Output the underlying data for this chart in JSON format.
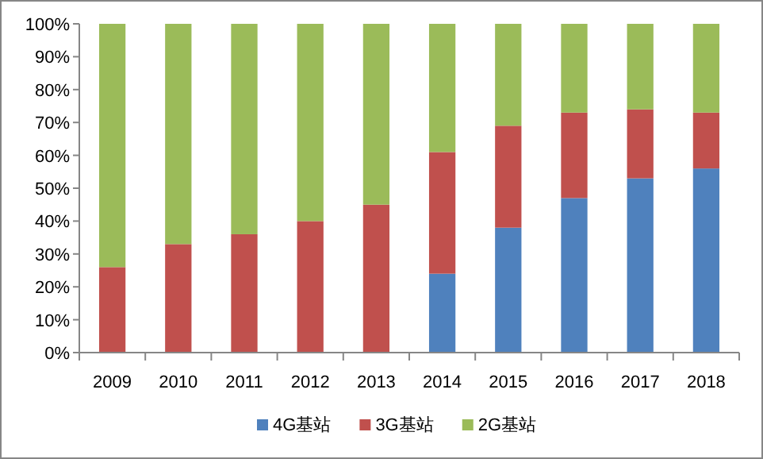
{
  "chart_data": {
    "type": "bar",
    "stacked": true,
    "categories": [
      "2009",
      "2010",
      "2011",
      "2012",
      "2013",
      "2014",
      "2015",
      "2016",
      "2017",
      "2018"
    ],
    "series": [
      {
        "name": "4G基站",
        "color": "#4f81bd",
        "values": [
          0,
          0,
          0,
          0,
          0,
          24,
          38,
          47,
          53,
          56
        ]
      },
      {
        "name": "3G基站",
        "color": "#c0504d",
        "values": [
          26,
          33,
          36,
          40,
          45,
          37,
          31,
          26,
          21,
          17
        ]
      },
      {
        "name": "2G基站",
        "color": "#9bbb59",
        "values": [
          74,
          67,
          64,
          60,
          55,
          39,
          31,
          27,
          26,
          27
        ]
      }
    ],
    "ylim": [
      0,
      100
    ],
    "yticks": [
      {
        "value": 0,
        "label": "0%"
      },
      {
        "value": 10,
        "label": "10%"
      },
      {
        "value": 20,
        "label": "20%"
      },
      {
        "value": 30,
        "label": "30%"
      },
      {
        "value": 40,
        "label": "40%"
      },
      {
        "value": 50,
        "label": "50%"
      },
      {
        "value": 60,
        "label": "60%"
      },
      {
        "value": 70,
        "label": "70%"
      },
      {
        "value": 80,
        "label": "80%"
      },
      {
        "value": 90,
        "label": "90%"
      },
      {
        "value": 100,
        "label": "100%"
      }
    ],
    "legend": "bottom"
  }
}
